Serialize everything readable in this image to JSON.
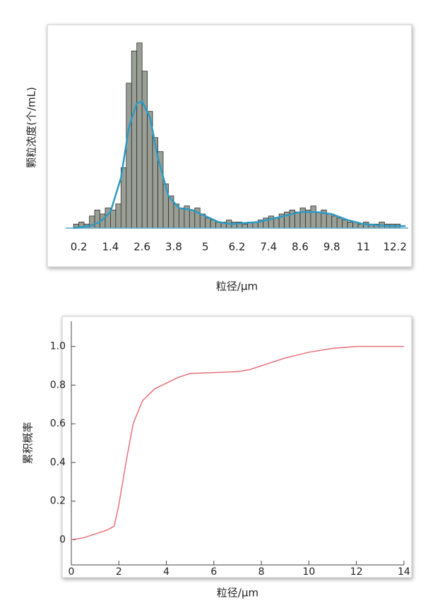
{
  "chart_data": [
    {
      "type": "histogram",
      "xlabel": "粒径/μm",
      "ylabel": "颗粒浓度(个/mL)",
      "bins": [
        0,
        0.2,
        0.4,
        0.6,
        0.8,
        1.0,
        1.2,
        1.4,
        1.6,
        1.8,
        2.0,
        2.2,
        2.4,
        2.6,
        2.8,
        3.0,
        3.2,
        3.4,
        3.6,
        3.8,
        4.0,
        4.2,
        4.4,
        4.6,
        4.8,
        5.0,
        5.2,
        5.4,
        5.6,
        5.8,
        6.0,
        6.2,
        6.4,
        6.6,
        6.8,
        7.0,
        7.2,
        7.4,
        7.6,
        7.8,
        8.0,
        8.2,
        8.4,
        8.6,
        8.8,
        9.0,
        9.2,
        9.4,
        9.6,
        9.8,
        10.0,
        10.2,
        10.4,
        10.6,
        10.8,
        11.0,
        11.2,
        11.4,
        11.6,
        11.8,
        12.0,
        12.2,
        12.4
      ],
      "counts": [
        2,
        3,
        2,
        6,
        9,
        7,
        10,
        9,
        12,
        30,
        72,
        88,
        92,
        78,
        58,
        45,
        38,
        22,
        16,
        12,
        10,
        11,
        9,
        10,
        7,
        5,
        4,
        3,
        3,
        4,
        3,
        3,
        2,
        3,
        3,
        4,
        5,
        6,
        5,
        7,
        8,
        9,
        8,
        10,
        9,
        11,
        8,
        9,
        7,
        6,
        5,
        4,
        3,
        3,
        2,
        3,
        2,
        2,
        3,
        2,
        2,
        2
      ],
      "color": "#9a9f96",
      "curve": {
        "x": [
          0,
          0.6,
          1.0,
          1.4,
          1.8,
          2.1,
          2.4,
          2.6,
          2.9,
          3.2,
          3.6,
          4.0,
          4.5,
          5.0,
          5.5,
          6,
          7,
          8,
          8.6,
          9.2,
          9.8,
          10.4,
          11,
          12,
          12.6
        ],
        "values": [
          0,
          1,
          3,
          8,
          25,
          50,
          62,
          63,
          55,
          35,
          16,
          10,
          9,
          6,
          3,
          2,
          3,
          6,
          8,
          8,
          7,
          4,
          2,
          1,
          1
        ],
        "color": "#2e9ac4"
      },
      "xlim": [
        -0.3,
        12.7
      ],
      "ylim": [
        0,
        100
      ],
      "xticks": [
        0.2,
        1.4,
        2.6,
        3.8,
        5,
        6.2,
        7.4,
        8.6,
        9.8,
        11,
        12.2
      ]
    },
    {
      "type": "line",
      "xlabel": "粒径/μm",
      "ylabel": "累积概率",
      "x": [
        0,
        0.5,
        1,
        1.5,
        1.8,
        2,
        2.3,
        2.6,
        3,
        3.5,
        4,
        4.5,
        5,
        6,
        7,
        7.5,
        8,
        9,
        10,
        11,
        12,
        14
      ],
      "values": [
        0,
        0.01,
        0.03,
        0.05,
        0.07,
        0.18,
        0.4,
        0.6,
        0.72,
        0.78,
        0.81,
        0.84,
        0.86,
        0.865,
        0.87,
        0.88,
        0.9,
        0.94,
        0.97,
        0.99,
        1,
        1
      ],
      "color": "#e8707a",
      "xlim": [
        0,
        14
      ],
      "ylim": [
        -0.13,
        1.13
      ],
      "xticks": [
        0,
        2,
        4,
        6,
        8,
        10,
        12,
        14
      ],
      "yticks": [
        0,
        0.2,
        0.4,
        0.6,
        0.8,
        {
          "value": 1,
          "label": "1.0"
        }
      ]
    }
  ]
}
